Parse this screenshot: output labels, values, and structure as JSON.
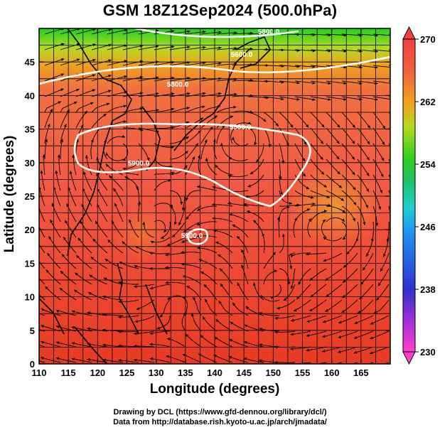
{
  "title": "GSM 18Z12Sep2024 (500.0hPa)",
  "xlabel": "Longitude (degrees)",
  "ylabel": "Latitude  (degrees)",
  "credit_line1": "Drawing by DCL (https://www.gfd-dennou.org/library/dcl/)",
  "credit_line2": "Data from http://database.rish.kyoto-u.ac.jp/arch/jmadata/",
  "x_ticks": [
    "110",
    "115",
    "120",
    "125",
    "130",
    "135",
    "140",
    "145",
    "150",
    "155",
    "160",
    "165"
  ],
  "y_ticks": [
    "0",
    "5",
    "10",
    "15",
    "20",
    "25",
    "30",
    "35",
    "40",
    "45"
  ],
  "colorbar_ticks": [
    "230",
    "238",
    "246",
    "254",
    "262",
    "270"
  ],
  "contour_labels": [
    "5800.0",
    "5600.0",
    "5800.0",
    "5900.0",
    "5900.0",
    "5900.0"
  ],
  "chart_data": {
    "type": "heatmap",
    "variable": "temperature with 500 hPa geopotential height contours and streamlines",
    "xlim": [
      110,
      170
    ],
    "ylim": [
      0,
      50
    ],
    "colorbar_range": [
      230,
      270
    ],
    "grid": true,
    "contours": [
      {
        "label": "5800.0",
        "approx_lat_band": "46-48"
      },
      {
        "label": "5600.0",
        "approx_lat_band": "48-50"
      },
      {
        "label": "5800.0",
        "approx_lat_band": "43-45"
      },
      {
        "label": "5900.0",
        "approx_lat": 32
      },
      {
        "label": "5900.0",
        "approx_lat": 35
      },
      {
        "label": "5900.0",
        "approx_center": [
          136,
          20
        ]
      }
    ],
    "colors": {
      "north": "#30c830",
      "mid": "#f06040",
      "south": "#e83a2a",
      "warm_pool": "#f09a30"
    }
  }
}
